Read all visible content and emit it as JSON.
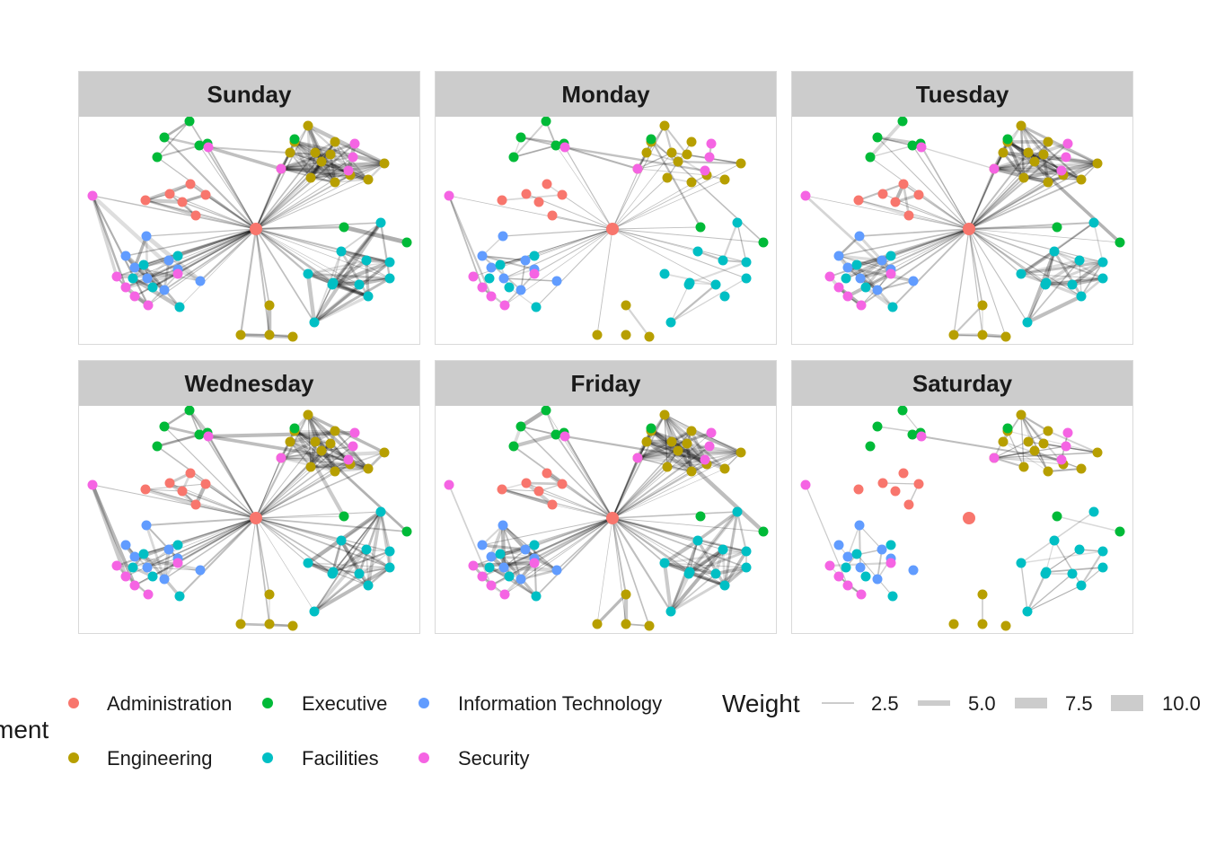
{
  "legend": {
    "color_title": "ment",
    "color_entries": [
      {
        "label": "Administration",
        "color": "#F8766D"
      },
      {
        "label": "Executive",
        "color": "#00BA38"
      },
      {
        "label": "Information Technology",
        "color": "#619CFF"
      },
      {
        "label": "Engineering",
        "color": "#B79F00"
      },
      {
        "label": "Facilities",
        "color": "#00BFC4"
      },
      {
        "label": "Security",
        "color": "#F564E3"
      }
    ],
    "weight_title": "Weight",
    "weight_entries": [
      "2.5",
      "5.0",
      "7.5",
      "10.0"
    ]
  },
  "panels": [
    {
      "title": "Sunday",
      "hub_present": true,
      "density": 1.0
    },
    {
      "title": "Monday",
      "hub_present": true,
      "density": 0.35
    },
    {
      "title": "Tuesday",
      "hub_present": true,
      "density": 0.8
    },
    {
      "title": "Wednesday",
      "hub_present": true,
      "density": 0.85
    },
    {
      "title": "Friday",
      "hub_present": true,
      "density": 0.9
    },
    {
      "title": "Saturday",
      "hub_present": false,
      "density": 0.3
    }
  ]
}
